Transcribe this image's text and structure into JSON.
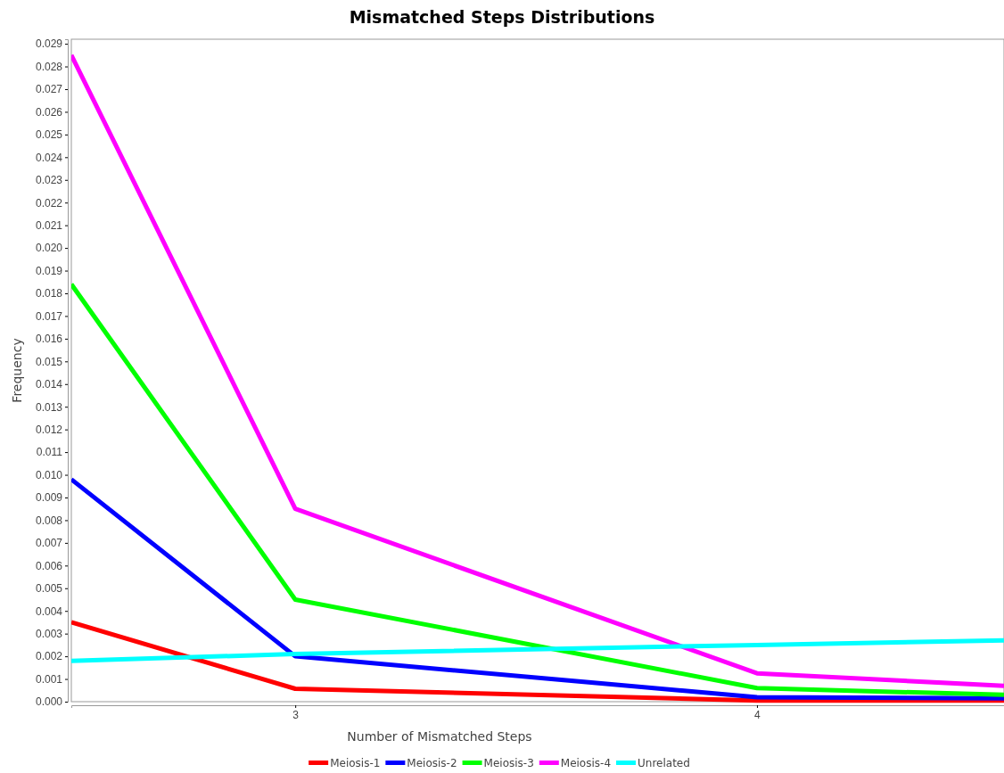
{
  "chart_data": {
    "type": "line",
    "title": "Mismatched Steps Distributions",
    "xlabel": "Number of Mismatched Steps",
    "ylabel": "Frequency",
    "xlim": [
      2.515,
      4.535
    ],
    "xticks": [
      3,
      4
    ],
    "ylim": [
      0,
      0.0292
    ],
    "yticks": [
      {
        "value": 0,
        "label": "0.000"
      },
      {
        "value": 0.001,
        "label": "0.001"
      },
      {
        "value": 0.002,
        "label": "0.002"
      },
      {
        "value": 0.003,
        "label": "0.003"
      },
      {
        "value": 0.004,
        "label": "0.004"
      },
      {
        "value": 0.005,
        "label": "0.005"
      },
      {
        "value": 0.006,
        "label": "0.006"
      },
      {
        "value": 0.007,
        "label": "0.007"
      },
      {
        "value": 0.008,
        "label": "0.008"
      },
      {
        "value": 0.009,
        "label": "0.009"
      },
      {
        "value": 0.01,
        "label": "0.010"
      },
      {
        "value": 0.011,
        "label": "0.011"
      },
      {
        "value": 0.012,
        "label": "0.012"
      },
      {
        "value": 0.013,
        "label": "0.013"
      },
      {
        "value": 0.014,
        "label": "0.014"
      },
      {
        "value": 0.015,
        "label": "0.015"
      },
      {
        "value": 0.016,
        "label": "0.016"
      },
      {
        "value": 0.017,
        "label": "0.017"
      },
      {
        "value": 0.018,
        "label": "0.018"
      },
      {
        "value": 0.019,
        "label": "0.019"
      },
      {
        "value": 0.02,
        "label": "0.020"
      },
      {
        "value": 0.021,
        "label": "0.021"
      },
      {
        "value": 0.022,
        "label": "0.022"
      },
      {
        "value": 0.023,
        "label": "0.023"
      },
      {
        "value": 0.024,
        "label": "0.024"
      },
      {
        "value": 0.025,
        "label": "0.025"
      },
      {
        "value": 0.026,
        "label": "0.026"
      },
      {
        "value": 0.027,
        "label": "0.027"
      },
      {
        "value": 0.028,
        "label": "0.028"
      },
      {
        "value": 0.029,
        "label": "0.029"
      }
    ],
    "x": [
      2.515,
      3,
      4,
      4.535
    ],
    "legend": "bottom",
    "grid": false,
    "marker": "none",
    "series": [
      {
        "name": "Meiosis-1",
        "color": "#ff0000",
        "values": [
          0.0035,
          0.00057,
          5e-05,
          5e-05
        ]
      },
      {
        "name": "Meiosis-2",
        "color": "#0000ff",
        "values": [
          0.0098,
          0.002,
          0.0002,
          0.00015
        ]
      },
      {
        "name": "Meiosis-3",
        "color": "#00ff00",
        "values": [
          0.0184,
          0.0045,
          0.0006,
          0.0003
        ]
      },
      {
        "name": "Meiosis-4",
        "color": "#ff00ff",
        "values": [
          0.0285,
          0.0085,
          0.00125,
          0.0007
        ]
      },
      {
        "name": "Unrelated",
        "color": "#00ffff",
        "values": [
          0.0018,
          0.0021,
          0.0025,
          0.0027
        ]
      }
    ]
  }
}
